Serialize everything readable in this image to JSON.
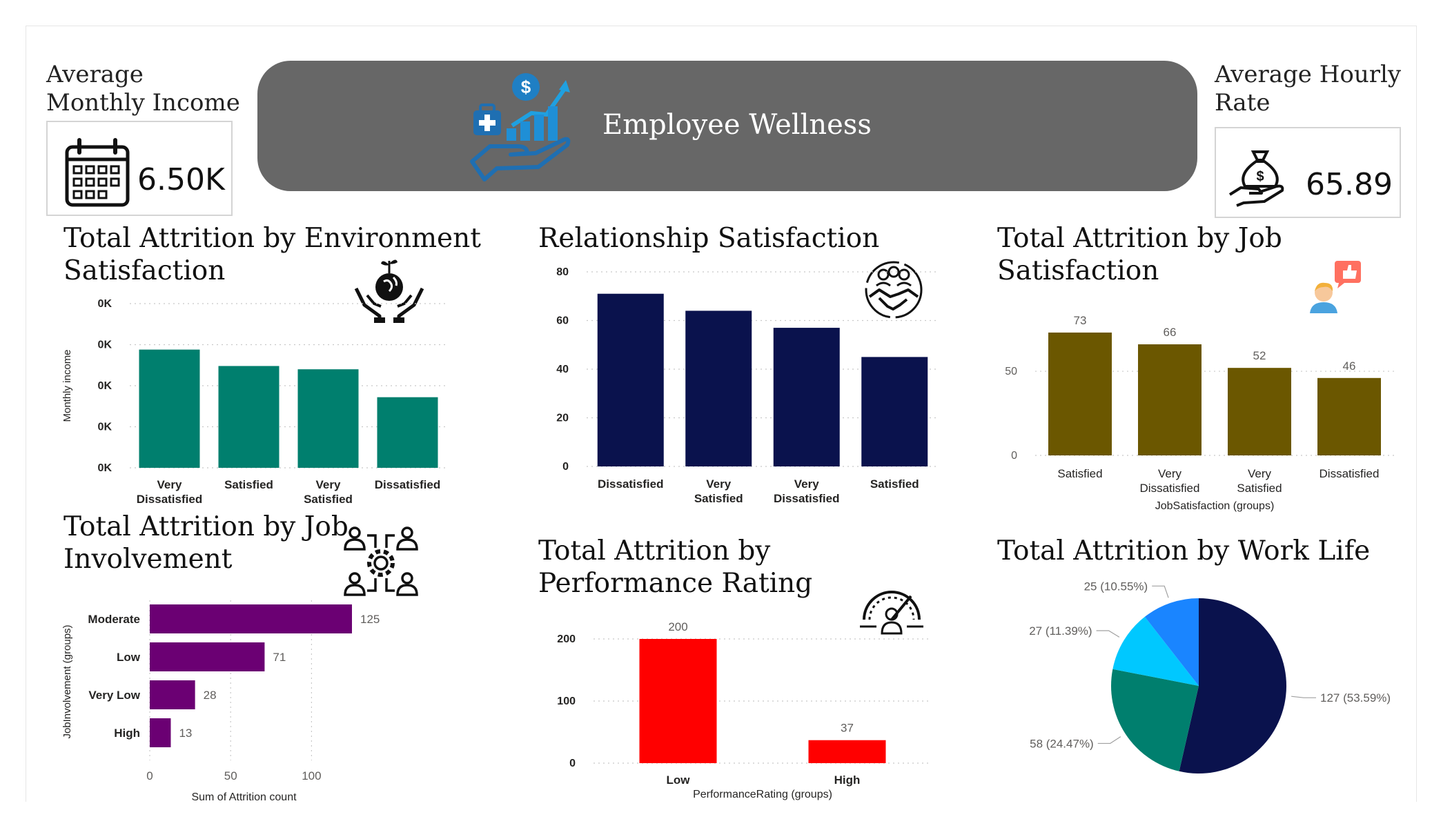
{
  "header": {
    "title": "Employee Wellness",
    "colors": {
      "banner": "#676767"
    }
  },
  "kpis": {
    "income": {
      "title": "Average Monthly Income",
      "value": "6.50K",
      "icon": "calendar-icon"
    },
    "hourly": {
      "title": "Average Hourly Rate",
      "value": "65.89",
      "icon": "money-bag-hand-icon"
    }
  },
  "chart_data": [
    {
      "id": "environment",
      "type": "bar",
      "title": "Total Attrition by Environment Satisfaction",
      "icon": "globe-hands-icon",
      "categories": [
        "Very Dissatisfied",
        "Satisfied",
        "Very Satisfied",
        "Dissatisfied"
      ],
      "values": [
        7.2,
        6.2,
        6.0,
        4.3
      ],
      "ylabel": "Monthly income",
      "yticks": [
        "0K",
        "0K",
        "0K",
        "0K",
        "0K"
      ],
      "ylim": [
        0,
        10
      ],
      "grid": true,
      "color": "#007f6e"
    },
    {
      "id": "relationship",
      "type": "bar",
      "title": "Relationship Satisfaction",
      "icon": "handshake-team-icon",
      "categories": [
        "Dissatisfied",
        "Very Satisfied",
        "Very Dissatisfied",
        "Satisfied"
      ],
      "values": [
        71,
        64,
        57,
        45
      ],
      "yticks": [
        "0",
        "20",
        "40",
        "60",
        "80"
      ],
      "ylim": [
        0,
        80
      ],
      "grid": true,
      "color": "#0a124d"
    },
    {
      "id": "job_satisfaction",
      "type": "bar",
      "title": "Total Attrition by Job Satisfaction",
      "icon": "thumbs-up-person-icon",
      "categories": [
        "Satisfied",
        "Very Dissatisfied",
        "Very Satisfied",
        "Dissatisfied"
      ],
      "values": [
        73,
        66,
        52,
        46
      ],
      "data_labels": [
        "73",
        "66",
        "52",
        "46"
      ],
      "xlabel": "JobSatisfaction (groups)",
      "yticks": [
        "0",
        "50"
      ],
      "ylim": [
        0,
        82
      ],
      "grid": true,
      "color": "#6b5700"
    },
    {
      "id": "job_involvement",
      "type": "bar",
      "orientation": "horizontal",
      "title": "Total Attrition by Job Involvement",
      "icon": "team-gear-icon",
      "categories": [
        "Moderate",
        "Low",
        "Very Low",
        "High"
      ],
      "values": [
        125,
        71,
        28,
        13
      ],
      "data_labels": [
        "125",
        "71",
        "28",
        "13"
      ],
      "xlabel": "Sum of Attrition count",
      "ylabel": "JobInvolvement (groups)",
      "xticks": [
        "0",
        "50",
        "100"
      ],
      "xlim": [
        0,
        125
      ],
      "grid": true,
      "color": "#6b0073"
    },
    {
      "id": "performance",
      "type": "bar",
      "title": "Total Attrition by Performance Rating",
      "icon": "speedometer-person-icon",
      "categories": [
        "Low",
        "High"
      ],
      "values": [
        200,
        37
      ],
      "data_labels": [
        "200",
        "37"
      ],
      "xlabel": "PerformanceRating (groups)",
      "yticks": [
        "0",
        "100",
        "200"
      ],
      "ylim": [
        0,
        200
      ],
      "grid": true,
      "color": "#ff0000"
    },
    {
      "id": "work_life",
      "type": "pie",
      "title": "Total Attrition by Work Life",
      "slices": [
        {
          "value": 127,
          "label": "127 (53.59%)",
          "color": "#0a124d"
        },
        {
          "value": 58,
          "label": "58 (24.47%)",
          "color": "#007f6e"
        },
        {
          "value": 27,
          "label": "27 (11.39%)",
          "color": "#00c8ff"
        },
        {
          "value": 25,
          "label": "25 (10.55%)",
          "color": "#1a85ff"
        }
      ]
    }
  ]
}
